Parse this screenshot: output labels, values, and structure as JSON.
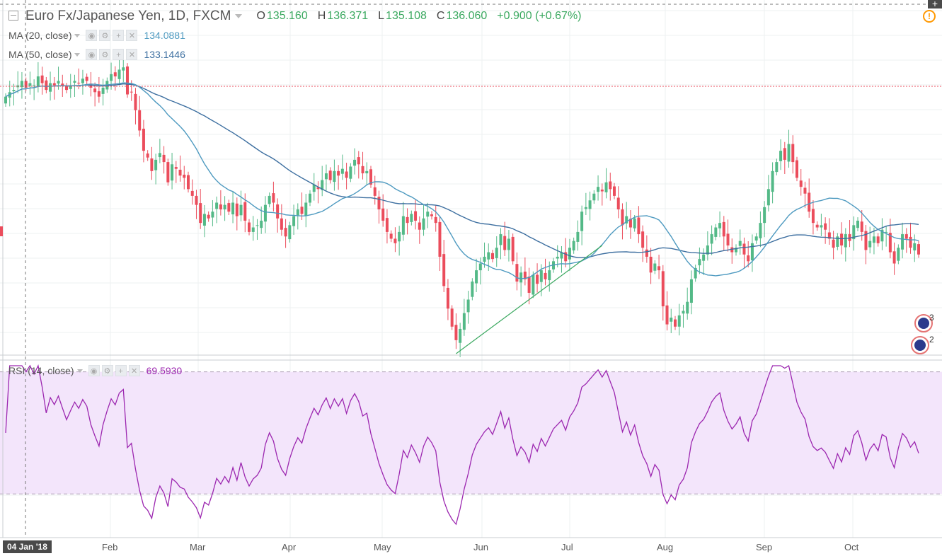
{
  "header": {
    "symbol": "Euro Fx/Japanese Yen, 1D, FXCM",
    "open_label": "O",
    "open": "135.160",
    "high_label": "H",
    "high": "136.371",
    "low_label": "L",
    "low": "135.108",
    "close_label": "C",
    "close": "136.060",
    "change": "+0.900 (+0.67%)"
  },
  "indicators": {
    "ma20": {
      "label": "MA (20, close)",
      "value": "134.0881",
      "color": "#4e9ac0"
    },
    "ma50": {
      "label": "MA (50, close)",
      "value": "133.1446",
      "color": "#3d6fa0"
    },
    "rsi": {
      "label": "RSI (14, close)",
      "value": "69.5930",
      "color": "#9c27b0"
    }
  },
  "icons": [
    "collapse-toggle-icon",
    "eye-icon",
    "gear-icon",
    "plus-icon",
    "close-icon",
    "alert-icon",
    "events-icon"
  ],
  "crosshair_date": "04 Jan '18",
  "events": [
    {
      "count": "3"
    },
    {
      "count": "2"
    }
  ],
  "colors": {
    "up": "#53b987",
    "down": "#eb4d5c",
    "rsi_band": "#f3e5fb",
    "price_line": "#eb4d5c"
  },
  "chart_data": [
    {
      "type": "candlestick",
      "symbol": "EUR/JPY",
      "interval": "1D",
      "x_axis_labels": [
        "Feb",
        "Mar",
        "Apr",
        "May",
        "Jun",
        "Jul",
        "Aug",
        "Sep",
        "Oct"
      ],
      "ylim": [
        124.2,
        139.7
      ],
      "last_close": 136.06,
      "close_series_approx": [
        135.6,
        135.8,
        135.9,
        136.1,
        136.3,
        136.0,
        136.2,
        136.1,
        136.5,
        136.2,
        135.9,
        136.2,
        136.1,
        136.3,
        136.1,
        135.9,
        136.1,
        136.3,
        136.2,
        136.4,
        136.3,
        136.0,
        135.8,
        135.6,
        136.0,
        136.3,
        136.6,
        136.5,
        136.8,
        136.9,
        135.7,
        135.8,
        135.0,
        134.1,
        133.2,
        132.9,
        132.3,
        132.8,
        133.1,
        132.7,
        131.8,
        132.6,
        132.4,
        132.1,
        132.0,
        131.5,
        131.2,
        130.8,
        130.0,
        130.4,
        130.2,
        130.5,
        130.9,
        130.6,
        130.8,
        130.5,
        130.9,
        130.3,
        130.8,
        130.1,
        129.6,
        129.8,
        129.9,
        130.1,
        130.8,
        131.2,
        130.9,
        130.2,
        129.7,
        129.4,
        129.9,
        130.3,
        130.6,
        130.4,
        130.9,
        131.3,
        131.7,
        131.5,
        131.9,
        132.2,
        131.9,
        132.3,
        132.1,
        132.4,
        132.0,
        132.5,
        132.8,
        132.6,
        132.2,
        132.3,
        131.7,
        131.2,
        130.6,
        130.1,
        129.6,
        129.3,
        129.1,
        129.6,
        130.3,
        130.0,
        130.4,
        130.1,
        129.7,
        130.2,
        130.5,
        130.3,
        130.0,
        128.5,
        127.2,
        126.2,
        125.4,
        124.8,
        125.3,
        126.0,
        126.6,
        127.4,
        127.9,
        128.2,
        128.5,
        128.7,
        128.4,
        128.9,
        129.5,
        128.8,
        129.3,
        128.3,
        127.4,
        127.8,
        127.5,
        126.9,
        127.7,
        127.3,
        127.9,
        127.5,
        127.9,
        128.3,
        128.5,
        128.7,
        128.3,
        128.9,
        129.2,
        129.6,
        130.5,
        130.7,
        131.0,
        131.3,
        131.6,
        131.4,
        131.8,
        131.5,
        131.2,
        130.6,
        129.9,
        130.3,
        129.8,
        130.2,
        129.5,
        128.9,
        128.5,
        127.8,
        128.2,
        127.9,
        126.3,
        125.5,
        125.8,
        125.4,
        125.9,
        126.1,
        126.5,
        127.5,
        128.0,
        128.4,
        128.6,
        129.0,
        129.5,
        129.8,
        130.0,
        129.4,
        129.0,
        128.7,
        128.9,
        129.2,
        128.6,
        128.3,
        129.1,
        129.4,
        130.0,
        130.7,
        131.5,
        132.3,
        132.7,
        133.2,
        132.8,
        133.5,
        132.7,
        132.0,
        131.6,
        131.3,
        130.5,
        130.0,
        129.8,
        129.9,
        129.7,
        129.3,
        128.9,
        129.4,
        129.0,
        129.5,
        129.2,
        129.9,
        130.1,
        129.6,
        128.8,
        129.2,
        129.4,
        129.1,
        129.7,
        129.6,
        128.7,
        128.2,
        128.9,
        129.5,
        129.3,
        128.9,
        129.1,
        128.6
      ],
      "series_overlays": [
        {
          "name": "MA (20, close)",
          "last": 134.0881
        },
        {
          "name": "MA (50, close)",
          "last": 133.1446
        }
      ]
    },
    {
      "type": "line",
      "name": "RSI (14, close)",
      "last": 69.593,
      "bands": [
        30,
        70
      ],
      "ylim": [
        18,
        72
      ]
    }
  ]
}
